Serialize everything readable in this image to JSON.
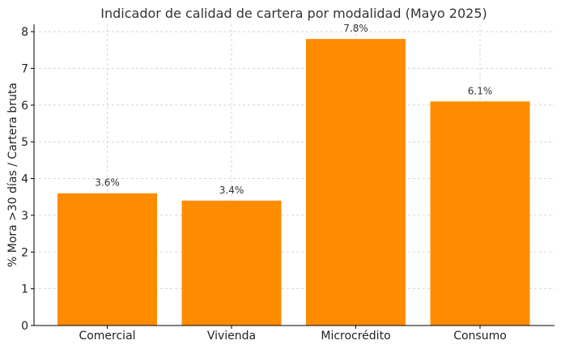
{
  "chart_data": {
    "type": "bar",
    "title": "Indicador de calidad de cartera por modalidad (Mayo 2025)",
    "xlabel": "",
    "ylabel": "% Mora >30 días / Cartera bruta",
    "categories": [
      "Comercial",
      "Vivienda",
      "Microcrédito",
      "Consumo"
    ],
    "values": [
      3.6,
      3.4,
      7.8,
      6.1
    ],
    "data_labels": [
      "3.6%",
      "3.4%",
      "7.8%",
      "6.1%"
    ],
    "ylim": [
      0,
      8.2
    ],
    "yticks": [
      0,
      1,
      2,
      3,
      4,
      5,
      6,
      7,
      8
    ],
    "grid": true,
    "bar_color": "#ff8c00"
  }
}
